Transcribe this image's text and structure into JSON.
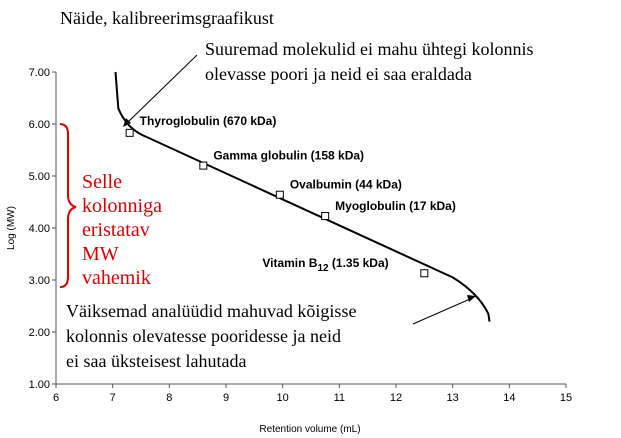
{
  "chart_data": {
    "type": "scatter",
    "title": "Näide, kalibreerimsgraafikust",
    "xlabel": "Retention volume (mL)",
    "ylabel": "Log (MW)",
    "xlim": [
      6,
      15
    ],
    "ylim": [
      1.0,
      7.0
    ],
    "x_ticks": [
      "6",
      "7",
      "8",
      "9",
      "10",
      "11",
      "12",
      "13",
      "14",
      "15"
    ],
    "y_ticks": [
      "1.00",
      "2.00",
      "3.00",
      "4.00",
      "5.00",
      "6.00",
      "7.00"
    ],
    "points": [
      {
        "label": "Thyroglobulin (670 kDa)",
        "x": 7.3,
        "y": 5.83
      },
      {
        "label": "Gamma globulin (158 kDa)",
        "x": 8.6,
        "y": 5.2
      },
      {
        "label": "Ovalbumin (44 kDa)",
        "x": 9.95,
        "y": 4.64
      },
      {
        "label": "Myoglobulin (17 kDa)",
        "x": 10.75,
        "y": 4.23
      },
      {
        "label": "Vitamin B",
        "label_sub": "12",
        "label_rest": " (1.35 kDa)",
        "x": 12.5,
        "y": 3.13
      }
    ],
    "curve": [
      {
        "x": 7.05,
        "y": 7.0
      },
      {
        "x": 7.1,
        "y": 6.3
      },
      {
        "x": 7.25,
        "y": 5.9
      },
      {
        "x": 7.6,
        "y": 5.75
      },
      {
        "x": 13.0,
        "y": 3.05
      },
      {
        "x": 13.45,
        "y": 2.75
      },
      {
        "x": 13.63,
        "y": 2.35
      },
      {
        "x": 13.65,
        "y": 2.2
      }
    ],
    "grid": false,
    "annotations": {
      "top": [
        "Suuremad molekulid ei mahu ühtegi kolonnis",
        "olevasse poori ja neid ei saa eraldada"
      ],
      "bottom": [
        "Väiksemad analüüdid mahuvad kõigisse",
        "kolonnis olevatesse pooridesse ja neid",
        "ei saa üksteisest lahutada"
      ],
      "range": [
        "Selle",
        "kolonniga",
        "eristatav",
        "MW",
        "vahemik"
      ]
    },
    "colors": {
      "range_text": "#e00000",
      "ink": "#000000",
      "axis": "#555555"
    }
  }
}
